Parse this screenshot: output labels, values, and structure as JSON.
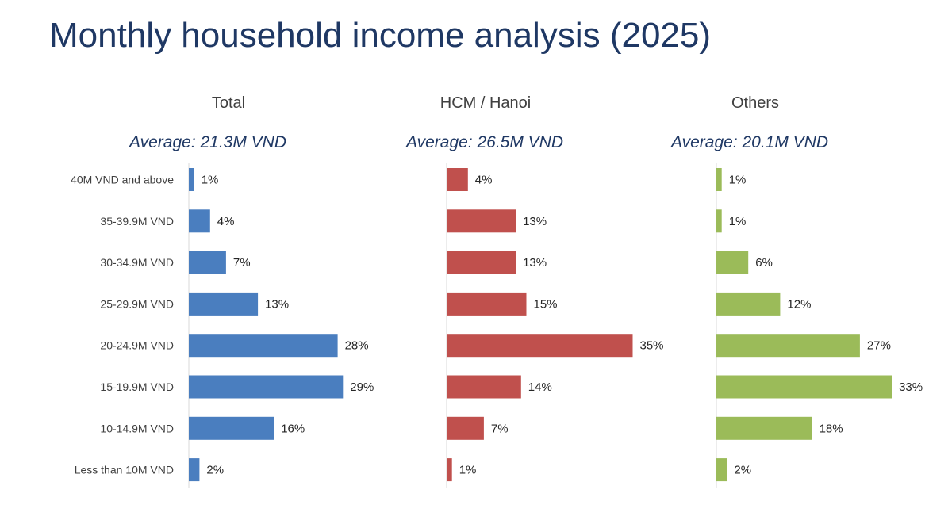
{
  "title": "Monthly household income analysis (2025)",
  "chart_data": {
    "type": "bar",
    "orientation": "horizontal",
    "categories": [
      "40M VND and above",
      "35-39.9M VND",
      "30-34.9M VND",
      "25-29.9M VND",
      "20-24.9M VND",
      "15-19.9M VND",
      "10-14.9M VND",
      "Less than 10M VND"
    ],
    "value_suffix": "%",
    "series": [
      {
        "name": "Total",
        "average": "Average: 21.3M VND",
        "color": "#4a7ebf",
        "values": [
          1,
          4,
          7,
          13,
          28,
          29,
          16,
          2
        ]
      },
      {
        "name": "HCM / Hanoi",
        "average": "Average: 26.5M VND",
        "color": "#c0504d",
        "values": [
          4,
          13,
          13,
          15,
          35,
          14,
          7,
          1
        ]
      },
      {
        "name": "Others",
        "average": "Average: 20.1M VND",
        "color": "#9bbb59",
        "values": [
          1,
          1,
          6,
          12,
          27,
          33,
          18,
          2
        ]
      }
    ]
  }
}
